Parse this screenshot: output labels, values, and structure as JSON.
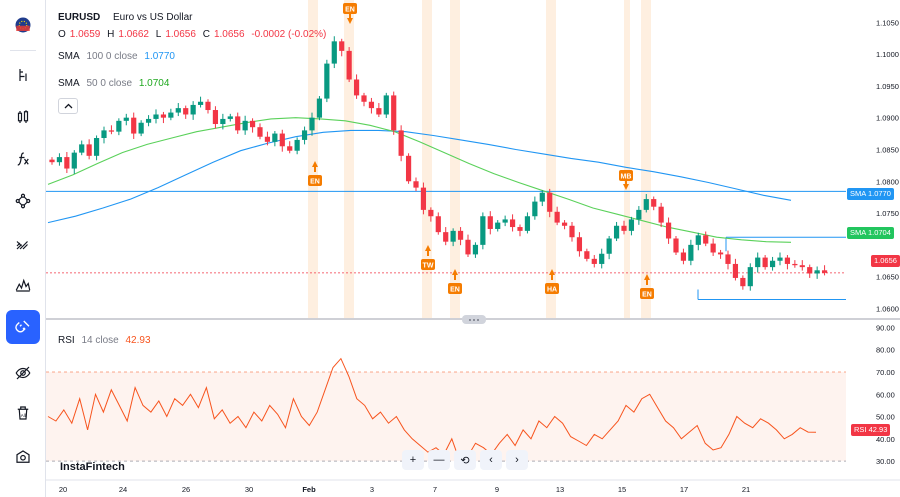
{
  "symbol": {
    "ticker": "EURUSD",
    "description": "Euro vs US Dollar",
    "o_label": "O",
    "o_value": "1.0659",
    "h_label": "H",
    "h_value": "1.0662",
    "l_label": "L",
    "l_value": "1.0656",
    "c_label": "C",
    "c_value": "1.0656",
    "change": "-0.0002 (-0.02%)"
  },
  "indicators": {
    "sma100": {
      "name": "SMA",
      "params": "100 0 close",
      "value": "1.0770",
      "color": "#2196f3"
    },
    "sma50": {
      "name": "SMA",
      "params": "50 0 close",
      "value": "1.0704",
      "color": "#4caf50"
    },
    "rsi": {
      "name": "RSI",
      "params": "14 close",
      "value": "42.93",
      "color": "#f7541e"
    }
  },
  "badges": {
    "sma100": {
      "label": "SMA",
      "value": "1.0770"
    },
    "sma50": {
      "label": "SMA",
      "value": "1.0704"
    },
    "price": {
      "value": "1.0656"
    },
    "rsi": {
      "label": "RSI",
      "value": "42.93"
    }
  },
  "brand": "InstaFintech",
  "colors": {
    "up": "#089981",
    "down": "#f23645",
    "accent": "#2962ff",
    "event": "#f57c00"
  },
  "toolbar_icons": [
    "flag-icon",
    "cursor-icon",
    "candles-icon",
    "fx-icon",
    "node-tool-icon",
    "brush-icon",
    "pattern-icon",
    "magnet-icon",
    "eye-off-icon",
    "trash-icon",
    "snapshot-icon"
  ],
  "nav": [
    "+",
    "—",
    "⟲",
    "‹",
    "›"
  ],
  "chart_data": [
    {
      "type": "candlestick",
      "title": "EURUSD",
      "y_ticks": [
        "1.1050",
        "1.1000",
        "1.0950",
        "1.0900",
        "1.0850",
        "1.0800",
        "1.0750",
        "1.0650",
        "1.0600"
      ],
      "x_ticks": [
        "20",
        "24",
        "26",
        "30",
        "Feb",
        "3",
        "7",
        "9",
        "13",
        "15",
        "17",
        "21"
      ],
      "ylim": [
        1.0585,
        1.1085
      ],
      "horizontal_levels": [
        1.0784,
        1.0712,
        1.0614
      ],
      "events": [
        {
          "label": "EN",
          "direction": "down"
        },
        {
          "label": "EN",
          "direction": "up"
        },
        {
          "label": "TW",
          "direction": "up"
        },
        {
          "label": "EN",
          "direction": "up"
        },
        {
          "label": "HA",
          "direction": "up"
        },
        {
          "label": "MB",
          "direction": "down"
        },
        {
          "label": "EN",
          "direction": "up"
        }
      ],
      "close_series": [
        1.083,
        1.0838,
        1.082,
        1.0845,
        1.0858,
        1.084,
        1.0868,
        1.088,
        1.0878,
        1.0895,
        1.09,
        1.0875,
        1.0892,
        1.0898,
        1.0905,
        1.09,
        1.0908,
        1.0915,
        1.0905,
        1.092,
        1.0925,
        1.0912,
        1.089,
        1.0898,
        1.0902,
        1.088,
        1.0895,
        1.0885,
        1.087,
        1.0862,
        1.0875,
        1.0855,
        1.0848,
        1.0865,
        1.088,
        1.09,
        1.093,
        1.0985,
        1.102,
        1.1005,
        1.096,
        1.0935,
        1.0925,
        1.0915,
        1.0905,
        1.0935,
        1.088,
        1.084,
        1.08,
        1.079,
        1.0755,
        1.0745,
        1.072,
        1.0705,
        1.0722,
        1.0708,
        1.0685,
        1.07,
        1.0745,
        1.0725,
        1.0735,
        1.074,
        1.0728,
        1.0722,
        1.0745,
        1.0768,
        1.0782,
        1.0752,
        1.0735,
        1.073,
        1.0712,
        1.069,
        1.0678,
        1.067,
        1.0686,
        1.071,
        1.073,
        1.0722,
        1.074,
        1.0755,
        1.0772,
        1.076,
        1.0735,
        1.071,
        1.0688,
        1.0675,
        1.07,
        1.0715,
        1.0702,
        1.0688,
        1.0685,
        1.067,
        1.0648,
        1.0635,
        1.0665,
        1.068,
        1.0665,
        1.0675,
        1.068,
        1.067,
        1.0668,
        1.0665,
        1.0655,
        1.066,
        1.0656
      ],
      "sma50_series": [
        1.0795,
        1.081,
        1.0828,
        1.0845,
        1.0858,
        1.0868,
        1.0878,
        1.0885,
        1.0892,
        1.0898,
        1.09,
        1.0898,
        1.0895,
        1.0888,
        1.0878,
        1.0862,
        1.0845,
        1.0828,
        1.0812,
        1.0798,
        1.0785,
        1.0772,
        1.0758,
        1.0748,
        1.0738,
        1.0728,
        1.072,
        1.0712,
        1.0708,
        1.0705,
        1.0704
      ],
      "sma100_series": [
        1.0735,
        1.0745,
        1.0758,
        1.0772,
        1.079,
        1.081,
        1.083,
        1.0848,
        1.086,
        1.087,
        1.0877,
        1.088,
        1.088,
        1.0878,
        1.0872,
        1.0865,
        1.0858,
        1.085,
        1.0843,
        1.0836,
        1.083,
        1.0822,
        1.0815,
        1.0807,
        1.0798,
        1.0788,
        1.0778,
        1.077
      ]
    },
    {
      "type": "line",
      "title": "RSI",
      "y_ticks": [
        "90.00",
        "80.00",
        "70.00",
        "60.00",
        "50.00",
        "40.00",
        "30.00"
      ],
      "ylim": [
        26,
        92
      ],
      "bands": [
        70,
        30
      ],
      "series": [
        {
          "name": "RSI",
          "values": [
            50,
            48,
            53,
            47,
            58,
            44,
            60,
            52,
            62,
            55,
            48,
            63,
            55,
            52,
            57,
            50,
            58,
            55,
            60,
            54,
            63,
            49,
            53,
            47,
            50,
            45,
            52,
            48,
            55,
            51,
            45,
            58,
            50,
            46,
            52,
            62,
            72,
            76,
            68,
            58,
            55,
            49,
            52,
            47,
            50,
            44,
            40,
            37,
            34,
            36,
            33,
            40,
            30,
            32,
            38,
            36,
            33,
            38,
            42,
            37,
            44,
            40,
            48,
            45,
            50,
            47,
            41,
            39,
            37,
            42,
            40,
            44,
            48,
            55,
            52,
            58,
            60,
            54,
            48,
            45,
            40,
            43,
            46,
            38,
            35,
            36,
            42,
            50,
            47,
            45,
            49,
            47,
            44,
            40,
            42,
            45,
            43,
            42.93
          ]
        }
      ]
    }
  ]
}
